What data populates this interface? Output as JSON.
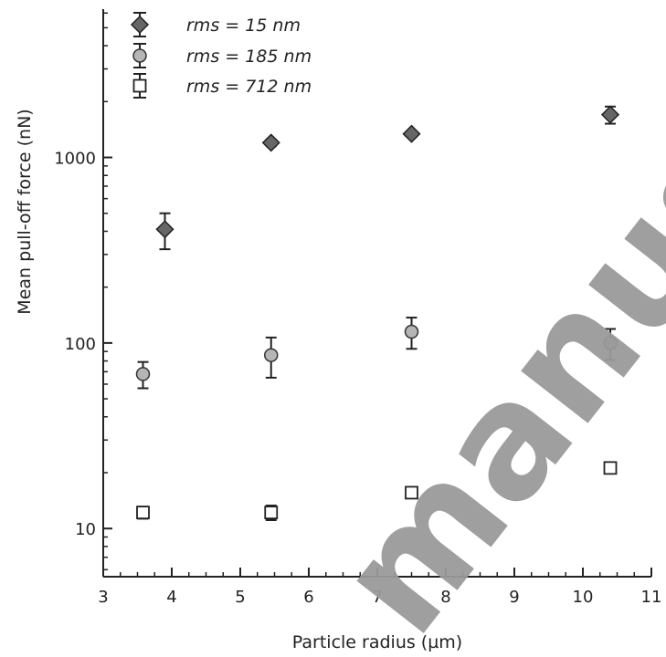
{
  "chart_data": {
    "type": "scatter",
    "xlabel": "Particle radius (µm)",
    "ylabel": "Mean pull-off force (nN)",
    "xlim": [
      3,
      11
    ],
    "ylim": [
      5.5,
      6300
    ],
    "yscale": "log",
    "xticks": [
      "3",
      "4",
      "5",
      "6",
      "7",
      "8",
      "9",
      "10",
      "11"
    ],
    "yticks": [
      "10",
      "100",
      "1000"
    ],
    "grid": false,
    "legend_position": "top-left",
    "series": [
      {
        "name": "rms = 15 nm",
        "marker": "diamond",
        "color": "#666666",
        "points": [
          {
            "x": 3.9,
            "y": 410,
            "err_low": 90,
            "err_high": 90
          },
          {
            "x": 5.45,
            "y": 1200,
            "err_low": 50,
            "err_high": 50
          },
          {
            "x": 7.5,
            "y": 1340,
            "err_low": 40,
            "err_high": 40
          },
          {
            "x": 10.4,
            "y": 1700,
            "err_low": 180,
            "err_high": 180
          }
        ]
      },
      {
        "name": "rms = 185 nm",
        "marker": "circle",
        "color": "#b5b5b5",
        "points": [
          {
            "x": 3.58,
            "y": 68,
            "err_low": 11,
            "err_high": 11
          },
          {
            "x": 5.45,
            "y": 86,
            "err_low": 21,
            "err_high": 21
          },
          {
            "x": 7.5,
            "y": 115,
            "err_low": 22,
            "err_high": 22
          },
          {
            "x": 10.4,
            "y": 100,
            "err_low": 19,
            "err_high": 19
          }
        ]
      },
      {
        "name": "rms = 712 nm",
        "marker": "square",
        "color": "#ffffff",
        "points": [
          {
            "x": 3.58,
            "y": 12.2,
            "err_low": 0.9,
            "err_high": 0.9
          },
          {
            "x": 5.45,
            "y": 12.2,
            "err_low": 1.1,
            "err_high": 1.1
          },
          {
            "x": 7.5,
            "y": 15.6,
            "err_low": 0,
            "err_high": 0
          },
          {
            "x": 10.4,
            "y": 21.2,
            "err_low": 0,
            "err_high": 0
          }
        ]
      }
    ]
  },
  "watermark": {
    "text": "manusc",
    "color": "#9a9a9a"
  }
}
